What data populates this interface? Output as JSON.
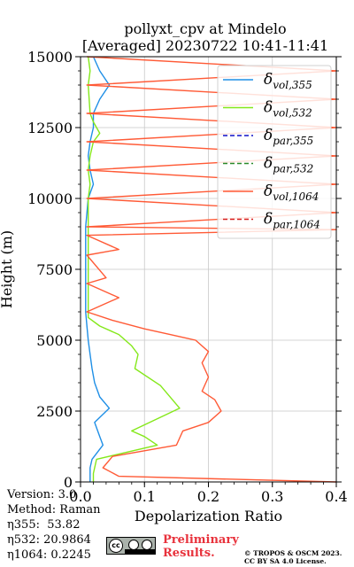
{
  "chart_data": {
    "type": "line",
    "title": "pollyxt_cpv at Mindelo",
    "subtitle": "[Averaged] 20230722 10:41-11:41",
    "xlabel": "Depolarization Ratio",
    "ylabel": "Height (m)",
    "xlim": [
      0,
      0.4
    ],
    "ylim": [
      0,
      15000
    ],
    "x_ticks": [
      "0.0",
      "0.1",
      "0.2",
      "0.3",
      "0.4"
    ],
    "y_ticks": [
      "0",
      "2500",
      "5000",
      "7500",
      "10000",
      "12500",
      "15000"
    ],
    "grid": true,
    "legend_position": "upper-right",
    "legend": [
      {
        "label": "δvol,355",
        "main": "δ",
        "sub": "vol,355",
        "color": "#1f8fe6",
        "style": "solid"
      },
      {
        "label": "δvol,532",
        "main": "δ",
        "sub": "vol,532",
        "color": "#84e81a",
        "style": "solid"
      },
      {
        "label": "δpar,355",
        "main": "δ",
        "sub": "par,355",
        "color": "#1010c8",
        "style": "dashed"
      },
      {
        "label": "δpar,532",
        "main": "δ",
        "sub": "par,532",
        "color": "#2a8a2a",
        "style": "dashed"
      },
      {
        "label": "δvol,1064",
        "main": "δ",
        "sub": "vol,1064",
        "color": "#ff5a36",
        "style": "solid"
      },
      {
        "label": "δpar,1064",
        "main": "δ",
        "sub": "par,1064",
        "color": "#d62020",
        "style": "dashed"
      }
    ],
    "series": [
      {
        "name": "δvol,355",
        "color": "#1f8fe6",
        "points": [
          [
            0.015,
            0
          ],
          [
            0.015,
            500
          ],
          [
            0.018,
            800
          ],
          [
            0.035,
            1300
          ],
          [
            0.03,
            1600
          ],
          [
            0.022,
            2100
          ],
          [
            0.045,
            2600
          ],
          [
            0.03,
            3000
          ],
          [
            0.022,
            3500
          ],
          [
            0.018,
            4000
          ],
          [
            0.015,
            4500
          ],
          [
            0.012,
            5000
          ],
          [
            0.01,
            5500
          ],
          [
            0.008,
            6000
          ],
          [
            0.008,
            7000
          ],
          [
            0.008,
            8000
          ],
          [
            0.008,
            9000
          ],
          [
            0.012,
            10000
          ],
          [
            0.02,
            10500
          ],
          [
            0.015,
            11000
          ],
          [
            0.012,
            11500
          ],
          [
            0.015,
            12000
          ],
          [
            0.02,
            12500
          ],
          [
            0.02,
            13000
          ],
          [
            0.03,
            13500
          ],
          [
            0.045,
            14000
          ],
          [
            0.03,
            14500
          ],
          [
            0.02,
            15000
          ]
        ]
      },
      {
        "name": "δvol,532",
        "color": "#84e81a",
        "points": [
          [
            0.02,
            0
          ],
          [
            0.02,
            300
          ],
          [
            0.025,
            800
          ],
          [
            0.12,
            1300
          ],
          [
            0.1,
            1600
          ],
          [
            0.08,
            1800
          ],
          [
            0.155,
            2600
          ],
          [
            0.125,
            3400
          ],
          [
            0.085,
            4000
          ],
          [
            0.09,
            4500
          ],
          [
            0.08,
            4800
          ],
          [
            0.06,
            5200
          ],
          [
            0.03,
            5500
          ],
          [
            0.012,
            5800
          ],
          [
            0.012,
            7000
          ],
          [
            0.012,
            8500
          ],
          [
            0.012,
            9500
          ],
          [
            0.012,
            10000
          ],
          [
            0.015,
            10500
          ],
          [
            0.012,
            11000
          ],
          [
            0.015,
            11500
          ],
          [
            0.02,
            12000
          ],
          [
            0.03,
            12300
          ],
          [
            0.02,
            12700
          ],
          [
            0.015,
            13000
          ],
          [
            0.012,
            14000
          ],
          [
            0.015,
            14500
          ],
          [
            0.012,
            15000
          ]
        ]
      },
      {
        "name": "δvol,1064",
        "color": "#ff5a36",
        "points": [
          [
            0.4,
            0
          ],
          [
            0.06,
            200
          ],
          [
            0.035,
            500
          ],
          [
            0.05,
            900
          ],
          [
            0.15,
            1300
          ],
          [
            0.16,
            1800
          ],
          [
            0.2,
            2100
          ],
          [
            0.22,
            2500
          ],
          [
            0.21,
            2900
          ],
          [
            0.19,
            3200
          ],
          [
            0.2,
            3700
          ],
          [
            0.19,
            4200
          ],
          [
            0.2,
            4600
          ],
          [
            0.18,
            5000
          ],
          [
            0.14,
            5200
          ],
          [
            0.1,
            5400
          ],
          [
            0.05,
            5700
          ],
          [
            0.01,
            6000
          ],
          [
            0.06,
            6500
          ],
          [
            0.01,
            7000
          ],
          [
            0.04,
            7200
          ],
          [
            0.01,
            8000
          ],
          [
            0.06,
            8200
          ],
          [
            0.01,
            8700
          ],
          [
            0.4,
            8900
          ],
          [
            0.01,
            9000
          ],
          [
            0.4,
            9500
          ],
          [
            0.01,
            10000
          ],
          [
            0.4,
            10500
          ],
          [
            0.01,
            11000
          ],
          [
            0.4,
            11500
          ],
          [
            0.01,
            12000
          ],
          [
            0.4,
            12500
          ],
          [
            0.01,
            13000
          ],
          [
            0.4,
            13500
          ],
          [
            0.01,
            14000
          ],
          [
            0.4,
            14500
          ],
          [
            0.01,
            15000
          ]
        ]
      }
    ]
  },
  "meta": {
    "version": "Version: 3.0",
    "method": "Method: Raman",
    "eta355_label": "η355:",
    "eta355_value": "53.82",
    "eta532_label": "η532:",
    "eta532_value": "20.9864",
    "eta1064_label": "η1064:",
    "eta1064_value": "0.2245"
  },
  "footer": {
    "license_icon": "cc-by-sa-icon",
    "cc_text": "cc",
    "prelim_line1": "Preliminary",
    "prelim_line2": "Results.",
    "copyright_line1": "© TROPOS & OSCM 2023.",
    "copyright_line2": "CC BY SA 4.0 License."
  }
}
